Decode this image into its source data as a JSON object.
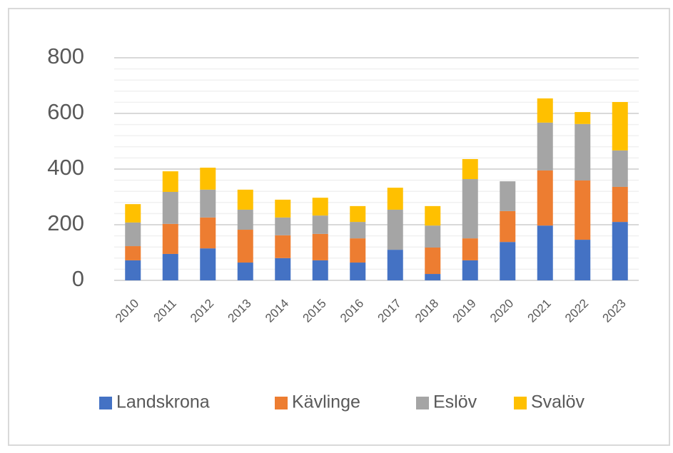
{
  "chart_data": {
    "type": "bar",
    "stacked": true,
    "categories": [
      "2010",
      "2011",
      "2012",
      "2013",
      "2014",
      "2015",
      "2016",
      "2017",
      "2018",
      "2019",
      "2020",
      "2021",
      "2022",
      "2023"
    ],
    "series": [
      {
        "name": "Landskrona",
        "color": "#4472c4",
        "values": [
          72,
          95,
          115,
          64,
          80,
          72,
          64,
          110,
          23,
          72,
          138,
          197,
          146,
          210
        ]
      },
      {
        "name": "Kävlinge",
        "color": "#ed7d31",
        "values": [
          51,
          108,
          111,
          118,
          82,
          95,
          87,
          0,
          95,
          79,
          111,
          198,
          213,
          126
        ]
      },
      {
        "name": "Eslöv",
        "color": "#a5a5a5",
        "values": [
          85,
          115,
          100,
          72,
          64,
          66,
          59,
          144,
          79,
          213,
          107,
          172,
          203,
          131
        ]
      },
      {
        "name": "Svalöv",
        "color": "#ffc000",
        "values": [
          66,
          74,
          79,
          72,
          64,
          64,
          57,
          79,
          70,
          72,
          0,
          87,
          43,
          174
        ]
      }
    ],
    "ylim": [
      0,
      800
    ],
    "yticks": [
      0,
      200,
      400,
      600,
      800
    ],
    "minor_yticks": [
      40,
      80,
      120,
      160,
      240,
      280,
      320,
      360,
      440,
      480,
      520,
      560,
      640,
      680,
      720,
      760
    ],
    "grid": true,
    "legend": "bottom"
  }
}
